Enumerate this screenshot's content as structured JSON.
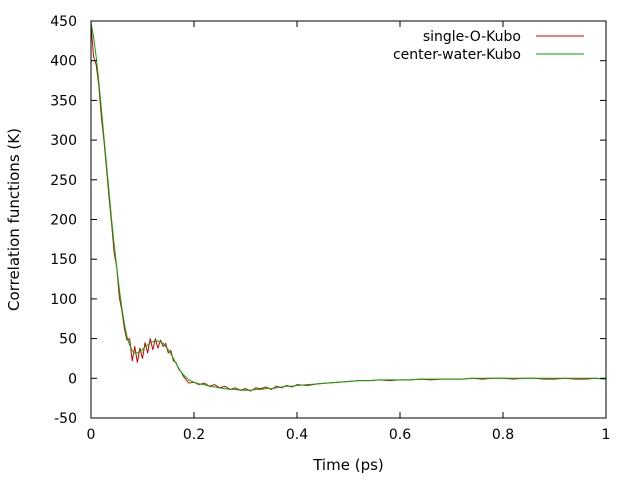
{
  "chart_data": {
    "type": "line",
    "title": "",
    "xlabel": "Time (ps)",
    "ylabel": "Correlation functions (K)",
    "xlim": [
      0,
      1
    ],
    "ylim": [
      -50,
      450
    ],
    "x_ticks": [
      0,
      0.2,
      0.4,
      0.6,
      0.8,
      1
    ],
    "x_tick_labels": [
      "0",
      "0.2",
      "0.4",
      "0.6",
      "0.8",
      "1"
    ],
    "y_ticks": [
      -50,
      0,
      50,
      100,
      150,
      200,
      250,
      300,
      350,
      400,
      450
    ],
    "y_tick_labels": [
      "-50",
      "0",
      "50",
      "100",
      "150",
      "200",
      "250",
      "300",
      "350",
      "400",
      "450"
    ],
    "grid": false,
    "legend_position": "top-right",
    "series": [
      {
        "name": "single-O-Kubo",
        "color": "#cc0000",
        "x": [
          0,
          0.005,
          0.01,
          0.015,
          0.02,
          0.025,
          0.03,
          0.035,
          0.04,
          0.045,
          0.05,
          0.055,
          0.06,
          0.065,
          0.07,
          0.075,
          0.08,
          0.085,
          0.09,
          0.095,
          0.1,
          0.105,
          0.11,
          0.115,
          0.12,
          0.125,
          0.13,
          0.135,
          0.14,
          0.145,
          0.15,
          0.155,
          0.16,
          0.165,
          0.17,
          0.175,
          0.18,
          0.19,
          0.2,
          0.21,
          0.22,
          0.23,
          0.24,
          0.25,
          0.26,
          0.27,
          0.28,
          0.29,
          0.3,
          0.31,
          0.32,
          0.33,
          0.34,
          0.35,
          0.36,
          0.37,
          0.38,
          0.39,
          0.4,
          0.42,
          0.44,
          0.46,
          0.48,
          0.5,
          0.52,
          0.54,
          0.56,
          0.58,
          0.6,
          0.62,
          0.64,
          0.66,
          0.68,
          0.7,
          0.72,
          0.74,
          0.76,
          0.78,
          0.8,
          0.82,
          0.84,
          0.86,
          0.88,
          0.9,
          0.92,
          0.94,
          0.96,
          0.98,
          1.0
        ],
        "y": [
          445,
          405,
          395,
          370,
          330,
          300,
          265,
          228,
          195,
          158,
          140,
          102,
          85,
          62,
          48,
          50,
          22,
          40,
          20,
          38,
          25,
          45,
          32,
          50,
          36,
          50,
          38,
          48,
          40,
          44,
          32,
          35,
          22,
          20,
          12,
          8,
          2,
          -6,
          -5,
          -8,
          -6,
          -10,
          -8,
          -12,
          -10,
          -14,
          -12,
          -15,
          -13,
          -16,
          -12,
          -13,
          -11,
          -14,
          -10,
          -12,
          -9,
          -11,
          -8,
          -9,
          -7,
          -6,
          -5,
          -4,
          -3,
          -3,
          -2,
          -3,
          -2,
          -2,
          -1,
          -2,
          -1,
          -1,
          -1,
          0,
          -1,
          0,
          0,
          -1,
          0,
          0,
          -1,
          -1,
          0,
          -1,
          -1,
          0,
          -1
        ]
      },
      {
        "name": "center-water-Kubo",
        "color": "#00aa00",
        "x": [
          0,
          0.005,
          0.01,
          0.015,
          0.02,
          0.025,
          0.03,
          0.035,
          0.04,
          0.045,
          0.05,
          0.055,
          0.06,
          0.065,
          0.07,
          0.075,
          0.08,
          0.085,
          0.09,
          0.095,
          0.1,
          0.105,
          0.11,
          0.115,
          0.12,
          0.125,
          0.13,
          0.135,
          0.14,
          0.145,
          0.15,
          0.155,
          0.16,
          0.165,
          0.17,
          0.175,
          0.18,
          0.19,
          0.2,
          0.21,
          0.22,
          0.23,
          0.24,
          0.25,
          0.26,
          0.27,
          0.28,
          0.29,
          0.3,
          0.31,
          0.32,
          0.33,
          0.34,
          0.35,
          0.36,
          0.37,
          0.38,
          0.39,
          0.4,
          0.42,
          0.44,
          0.46,
          0.48,
          0.5,
          0.52,
          0.54,
          0.56,
          0.58,
          0.6,
          0.62,
          0.64,
          0.66,
          0.68,
          0.7,
          0.72,
          0.74,
          0.76,
          0.78,
          0.8,
          0.82,
          0.84,
          0.86,
          0.88,
          0.9,
          0.92,
          0.94,
          0.96,
          0.98,
          1.0
        ],
        "y": [
          448,
          430,
          405,
          375,
          340,
          305,
          270,
          235,
          200,
          168,
          140,
          112,
          88,
          68,
          52,
          42,
          35,
          32,
          32,
          34,
          36,
          40,
          42,
          45,
          46,
          47,
          47,
          46,
          44,
          40,
          36,
          31,
          25,
          19,
          13,
          8,
          4,
          -2,
          -5,
          -7,
          -8,
          -10,
          -11,
          -12,
          -13,
          -14,
          -14,
          -15,
          -15,
          -15,
          -14,
          -14,
          -13,
          -13,
          -12,
          -11,
          -10,
          -10,
          -9,
          -8,
          -7,
          -6,
          -5,
          -4,
          -3,
          -3,
          -2,
          -2,
          -2,
          -2,
          -1,
          -1,
          -1,
          -1,
          -1,
          0,
          0,
          0,
          0,
          0,
          0,
          0,
          0,
          0,
          0,
          0,
          0,
          0,
          -1
        ]
      }
    ]
  }
}
